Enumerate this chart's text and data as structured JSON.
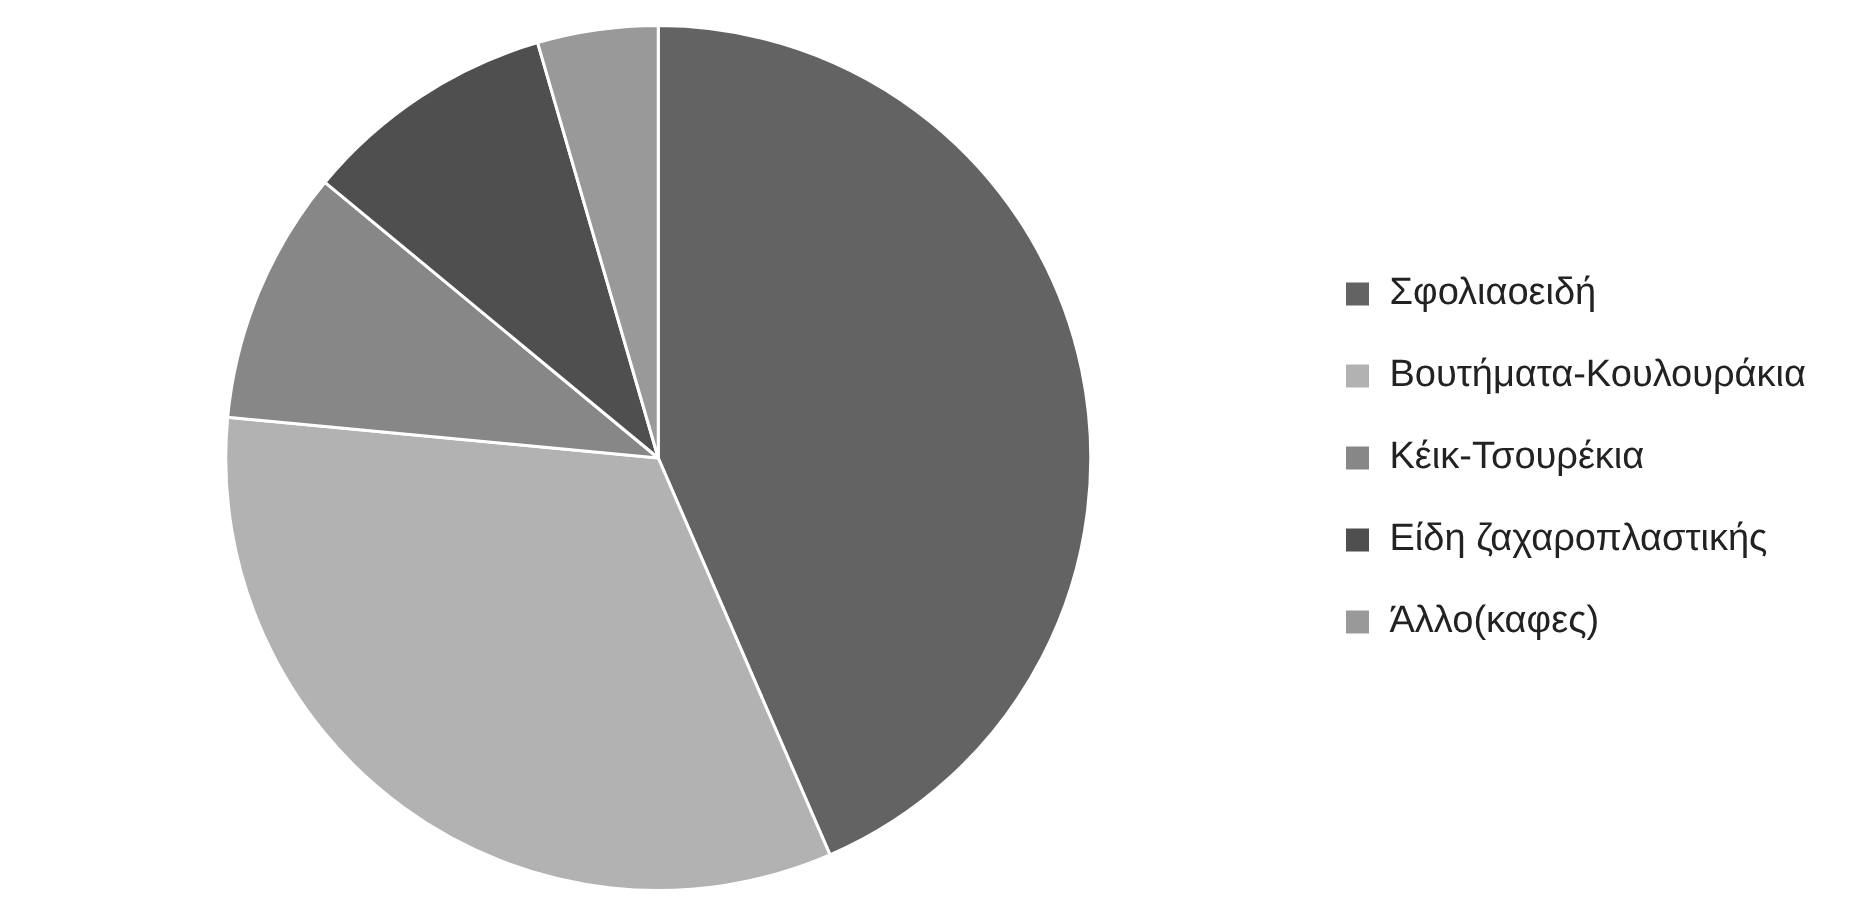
{
  "chart_data": {
    "type": "pie",
    "categories": [
      "Σφολιαοειδή",
      "Βουτήματα-Κουλουράκια",
      "Κέικ-Τσουρέκια",
      "Είδη ζαχαροπλαστικής",
      "Άλλο(καφες)"
    ],
    "values": [
      43.5,
      33,
      9.5,
      9.5,
      4.5
    ],
    "colors": [
      "#636363",
      "#b2b2b2",
      "#878787",
      "#4f4f4f",
      "#999999"
    ],
    "legend": "right"
  }
}
